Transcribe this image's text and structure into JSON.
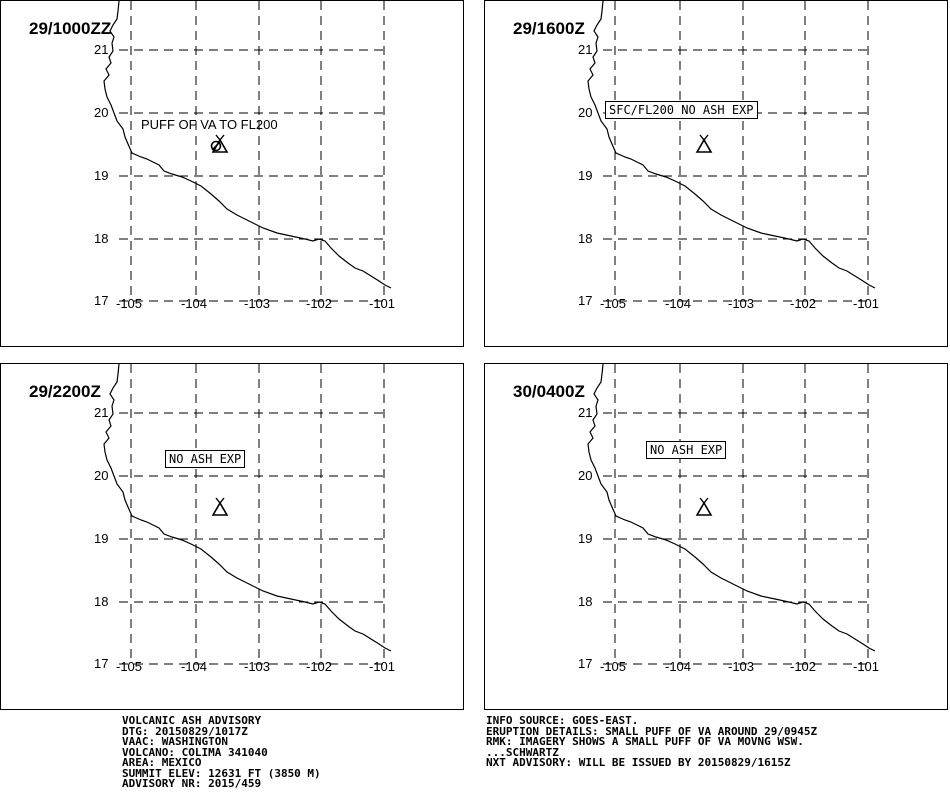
{
  "panels": [
    {
      "title": "29/1000ZZ",
      "annotation": "PUFF OF VA TO FL200",
      "boxed": false,
      "ash": true
    },
    {
      "title": "29/1600Z",
      "annotation": "SFC/FL200 NO ASH EXP",
      "boxed": true,
      "ash": false
    },
    {
      "title": "29/2200Z",
      "annotation": "NO ASH EXP",
      "boxed": true,
      "ash": false
    },
    {
      "title": "30/0400Z",
      "annotation": "NO ASH EXP",
      "boxed": true,
      "ash": false
    }
  ],
  "axes": {
    "lon_labels": [
      "-105",
      "-104",
      "-103",
      "-102",
      "-101"
    ],
    "lat_labels": [
      "21",
      "20",
      "19",
      "18",
      "17"
    ]
  },
  "volcano_icon": "volcano-icon",
  "footer_left": [
    "VOLCANIC ASH ADVISORY",
    "DTG: 20150829/1017Z",
    "VAAC: WASHINGTON",
    "VOLCANO: COLIMA 341040",
    "AREA: MEXICO",
    "SUMMIT ELEV: 12631 FT (3850 M)",
    "ADVISORY NR: 2015/459"
  ],
  "footer_right": [
    "INFO SOURCE: GOES-EAST.",
    "ERUPTION DETAILS: SMALL PUFF OF VA AROUND 29/0945Z",
    "RMK: IMAGERY SHOWS A SMALL PUFF OF VA MOVNG WSW.",
    "...SCHWARTZ",
    "NXT ADVISORY: WILL BE ISSUED BY 20150829/1615Z"
  ]
}
